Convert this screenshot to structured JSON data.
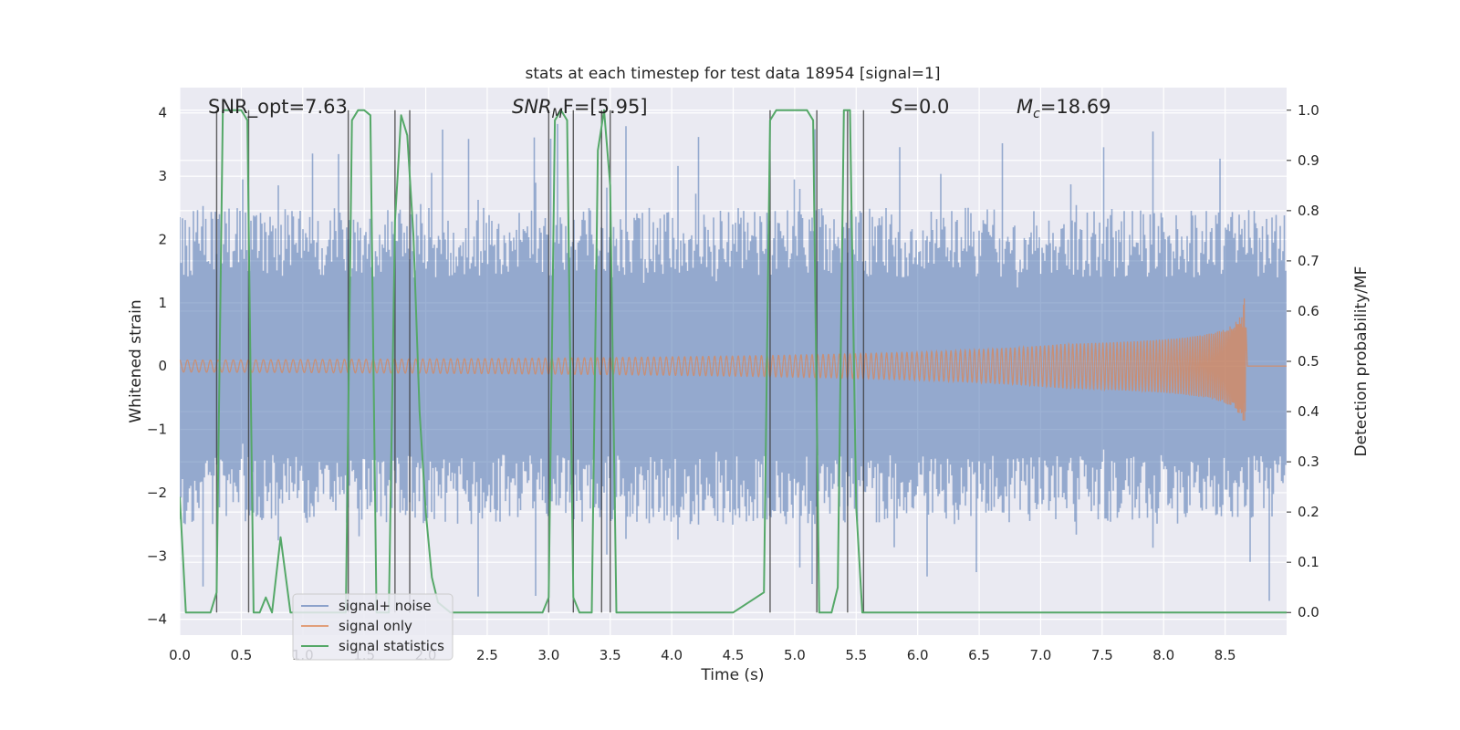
{
  "chart_data": {
    "type": "line",
    "title": "stats at each timestep for test data 18954 [signal=1]",
    "xlabel": "Time (s)",
    "ylabel": "Whitened strain",
    "y2label": "Detection probability/MF",
    "xlim": [
      0,
      9.0
    ],
    "ylim": [
      -4.25,
      4.4
    ],
    "y2lim": [
      -0.045,
      1.045
    ],
    "xticks": [
      "0.0",
      "0.5",
      "1.0",
      "1.5",
      "2.0",
      "2.5",
      "3.0",
      "3.5",
      "4.0",
      "4.5",
      "5.0",
      "5.5",
      "6.0",
      "6.5",
      "7.0",
      "7.5",
      "8.0",
      "8.5"
    ],
    "yticks": [
      "4",
      "3",
      "2",
      "1",
      "0",
      "−1",
      "−2",
      "−3",
      "−4"
    ],
    "y2ticks": [
      "1.0",
      "0.9",
      "0.8",
      "0.7",
      "0.6",
      "0.5",
      "0.4",
      "0.3",
      "0.2",
      "0.1",
      "0.0"
    ],
    "grid": true,
    "legend_position": "lower-left",
    "annotations": {
      "snr_opt": "SNR_opt=7.63",
      "snr_mf_label": "SNR",
      "snr_mf_sub": "M",
      "snr_mf_rest": "F=[5.95]",
      "s_label": "S",
      "s_rest": "=0.0",
      "mc_label": "M",
      "mc_sub": "c",
      "mc_rest": "=18.69"
    },
    "series": [
      {
        "name": "signal+ noise",
        "color": "#4c72b0",
        "axis": "left",
        "description_values": "noise band envelope",
        "typical_range": [
          -2.5,
          2.5
        ],
        "peak_range": [
          -3.8,
          3.9
        ]
      },
      {
        "name": "signal only",
        "color": "#dd8452",
        "axis": "left",
        "chirp_merger_time": 8.67,
        "chirp_peak_amplitude": [
          -1.4,
          1.6
        ]
      },
      {
        "name": "signal statistics",
        "color": "#55a868",
        "axis": "right",
        "x": [
          0.0,
          0.05,
          0.15,
          0.25,
          0.3,
          0.35,
          0.4,
          0.45,
          0.5,
          0.55,
          0.6,
          0.65,
          0.7,
          0.75,
          0.82,
          0.9,
          0.95,
          1.0,
          1.1,
          1.2,
          1.3,
          1.35,
          1.4,
          1.45,
          1.5,
          1.55,
          1.6,
          1.65,
          1.7,
          1.75,
          1.8,
          1.85,
          1.9,
          1.95,
          2.0,
          2.05,
          2.1,
          2.2,
          2.5,
          2.8,
          2.95,
          3.0,
          3.05,
          3.1,
          3.15,
          3.2,
          3.25,
          3.3,
          3.35,
          3.4,
          3.45,
          3.5,
          3.55,
          3.6,
          3.65,
          4.0,
          4.2,
          4.5,
          4.75,
          4.8,
          4.85,
          4.9,
          5.0,
          5.1,
          5.15,
          5.2,
          5.25,
          5.3,
          5.35,
          5.4,
          5.45,
          5.5,
          5.55,
          5.6,
          5.65,
          5.7,
          6.0,
          7.0,
          8.0,
          9.0
        ],
        "values": [
          0.23,
          0.0,
          0.0,
          0.0,
          0.04,
          1.0,
          1.0,
          1.0,
          1.0,
          0.98,
          0.0,
          0.0,
          0.03,
          0.0,
          0.15,
          0.0,
          0.0,
          0.0,
          0.0,
          0.0,
          0.0,
          0.0,
          0.98,
          1.0,
          1.0,
          0.99,
          0.0,
          0.0,
          0.0,
          0.78,
          0.99,
          0.95,
          0.75,
          0.4,
          0.2,
          0.07,
          0.02,
          0.0,
          0.0,
          0.0,
          0.0,
          0.03,
          0.98,
          1.0,
          0.98,
          0.03,
          0.0,
          0.0,
          0.0,
          0.92,
          1.0,
          0.85,
          0.0,
          0.0,
          0.0,
          0.0,
          0.0,
          0.0,
          0.04,
          0.98,
          1.0,
          1.0,
          1.0,
          1.0,
          0.98,
          0.0,
          0.0,
          0.0,
          0.05,
          1.0,
          1.0,
          0.21,
          0.0,
          0.0,
          0.0,
          0.0,
          0.0,
          0.0,
          0.0,
          0.0
        ]
      }
    ],
    "vlines_x": [
      0.3,
      0.56,
      1.37,
      1.75,
      1.87,
      3.0,
      3.2,
      3.43,
      3.5,
      4.8,
      5.18,
      5.43,
      5.56
    ]
  }
}
